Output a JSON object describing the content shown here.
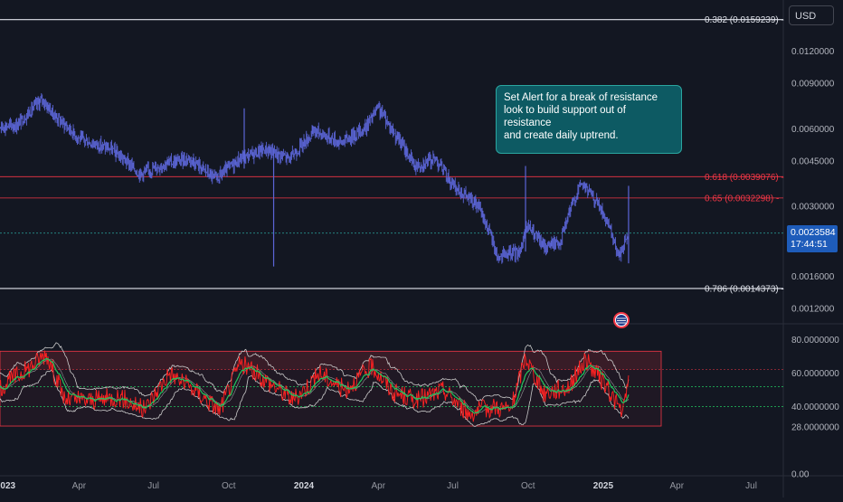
{
  "currency": "USD",
  "callout": {
    "lines": [
      "Set Alert for a break of resistance",
      "look to build support out of resistance",
      "and create daily uptrend."
    ]
  },
  "last_price": {
    "value": "0.0023584",
    "countdown": "17:44:51"
  },
  "colors": {
    "background": "#131722",
    "candle": "#5b65d6",
    "fib_white": "#e0e3eb",
    "fib_red": "#f23645",
    "rsi_line": "#ff2222",
    "rsi_signal": "#22c55e",
    "bands": "#c8c8c8",
    "callout_bg": "#0d5a63"
  },
  "chart_data": [
    {
      "type": "candlestick",
      "scale": "log",
      "ylim": [
        0.0011,
        0.0175
      ],
      "yticks": [
        "0.0160000",
        "0.0120000",
        "0.0090000",
        "0.0060000",
        "0.0045000",
        "0.0030000",
        "0.0016000",
        "0.0012000"
      ],
      "ytick_values": [
        0.016,
        0.012,
        0.009,
        0.006,
        0.0045,
        0.003,
        0.0016,
        0.0012
      ],
      "xticks": [
        "2023",
        "Apr",
        "Jul",
        "Oct",
        "2024",
        "Apr",
        "Jul",
        "Oct",
        "2025",
        "Apr",
        "Jul"
      ],
      "xtick_dates": [
        "2023-01-01",
        "2023-04-01",
        "2023-07-01",
        "2023-10-01",
        "2024-01-01",
        "2024-04-01",
        "2024-07-01",
        "2024-10-01",
        "2025-01-01",
        "2025-04-01",
        "2025-07-01"
      ],
      "fib_levels": [
        {
          "label": "0.382 (0.0159239)",
          "value": 0.0159239,
          "color": "white"
        },
        {
          "label": "0.618 (0.0039076)",
          "value": 0.0039076,
          "color": "red"
        },
        {
          "label": "0.65 (0.0032298)",
          "value": 0.0032298,
          "color": "red"
        },
        {
          "label": "0.786 (0.0014373)",
          "value": 0.0014373,
          "color": "white"
        }
      ],
      "last_price": 0.0023584,
      "price_path": [
        {
          "date": "2022-12-20",
          "close": 0.0061
        },
        {
          "date": "2023-01-15",
          "close": 0.0062
        },
        {
          "date": "2023-02-15",
          "close": 0.0078
        },
        {
          "date": "2023-03-01",
          "close": 0.0068
        },
        {
          "date": "2023-04-01",
          "close": 0.0055
        },
        {
          "date": "2023-05-10",
          "close": 0.005
        },
        {
          "date": "2023-06-15",
          "close": 0.004
        },
        {
          "date": "2023-07-15",
          "close": 0.0044
        },
        {
          "date": "2023-08-15",
          "close": 0.0046
        },
        {
          "date": "2023-09-15",
          "close": 0.0038
        },
        {
          "date": "2023-10-15",
          "close": 0.0046
        },
        {
          "date": "2023-11-15",
          "close": 0.005
        },
        {
          "date": "2023-12-15",
          "close": 0.0046
        },
        {
          "date": "2024-01-15",
          "close": 0.0059
        },
        {
          "date": "2024-02-15",
          "close": 0.0053
        },
        {
          "date": "2024-03-15",
          "close": 0.006
        },
        {
          "date": "2024-04-01",
          "close": 0.0072
        },
        {
          "date": "2024-04-20",
          "close": 0.0058
        },
        {
          "date": "2024-05-15",
          "close": 0.0043
        },
        {
          "date": "2024-06-10",
          "close": 0.0046
        },
        {
          "date": "2024-07-01",
          "close": 0.0036
        },
        {
          "date": "2024-08-01",
          "close": 0.003
        },
        {
          "date": "2024-08-25",
          "close": 0.0019
        },
        {
          "date": "2024-09-20",
          "close": 0.002
        },
        {
          "date": "2024-10-01",
          "close": 0.0025
        },
        {
          "date": "2024-10-20",
          "close": 0.0021
        },
        {
          "date": "2024-11-10",
          "close": 0.0022
        },
        {
          "date": "2024-12-05",
          "close": 0.0037
        },
        {
          "date": "2024-12-25",
          "close": 0.0031
        },
        {
          "date": "2025-01-20",
          "close": 0.0019
        },
        {
          "date": "2025-02-01",
          "close": 0.0023584
        }
      ],
      "spikes": [
        {
          "date": "2023-10-20",
          "high": 0.0072,
          "low": 0.0042
        },
        {
          "date": "2023-11-25",
          "high": 0.005,
          "low": 0.00175
        },
        {
          "date": "2024-09-28",
          "high": 0.0043,
          "low": 0.002
        },
        {
          "date": "2025-02-01",
          "high": 0.0036,
          "low": 0.0018
        }
      ]
    },
    {
      "type": "line",
      "ylim": [
        0,
        85
      ],
      "yticks": [
        "80.0000000",
        "60.0000000",
        "40.0000000",
        "28.0000000",
        "0.00"
      ],
      "ytick_values": [
        80,
        60,
        40,
        28,
        0
      ],
      "bands": {
        "upper": 70,
        "middle": 52,
        "lower": 40
      },
      "rsi_path": [
        {
          "date": "2022-12-20",
          "value": 50
        },
        {
          "date": "2023-02-01",
          "value": 64
        },
        {
          "date": "2023-02-20",
          "value": 72
        },
        {
          "date": "2023-03-15",
          "value": 44
        },
        {
          "date": "2023-04-20",
          "value": 44
        },
        {
          "date": "2023-05-20",
          "value": 46
        },
        {
          "date": "2023-06-20",
          "value": 38
        },
        {
          "date": "2023-07-20",
          "value": 60
        },
        {
          "date": "2023-08-20",
          "value": 50
        },
        {
          "date": "2023-09-20",
          "value": 38
        },
        {
          "date": "2023-10-15",
          "value": 66
        },
        {
          "date": "2023-11-15",
          "value": 56
        },
        {
          "date": "2023-12-20",
          "value": 44
        },
        {
          "date": "2024-01-20",
          "value": 60
        },
        {
          "date": "2024-02-20",
          "value": 50
        },
        {
          "date": "2024-03-25",
          "value": 64
        },
        {
          "date": "2024-04-20",
          "value": 48
        },
        {
          "date": "2024-05-20",
          "value": 44
        },
        {
          "date": "2024-06-20",
          "value": 50
        },
        {
          "date": "2024-07-20",
          "value": 36
        },
        {
          "date": "2024-08-20",
          "value": 40
        },
        {
          "date": "2024-09-10",
          "value": 38
        },
        {
          "date": "2024-09-28",
          "value": 70
        },
        {
          "date": "2024-10-20",
          "value": 48
        },
        {
          "date": "2024-11-20",
          "value": 52
        },
        {
          "date": "2024-12-10",
          "value": 68
        },
        {
          "date": "2025-01-05",
          "value": 52
        },
        {
          "date": "2025-01-25",
          "value": 36
        },
        {
          "date": "2025-02-01",
          "value": 55
        }
      ]
    }
  ]
}
